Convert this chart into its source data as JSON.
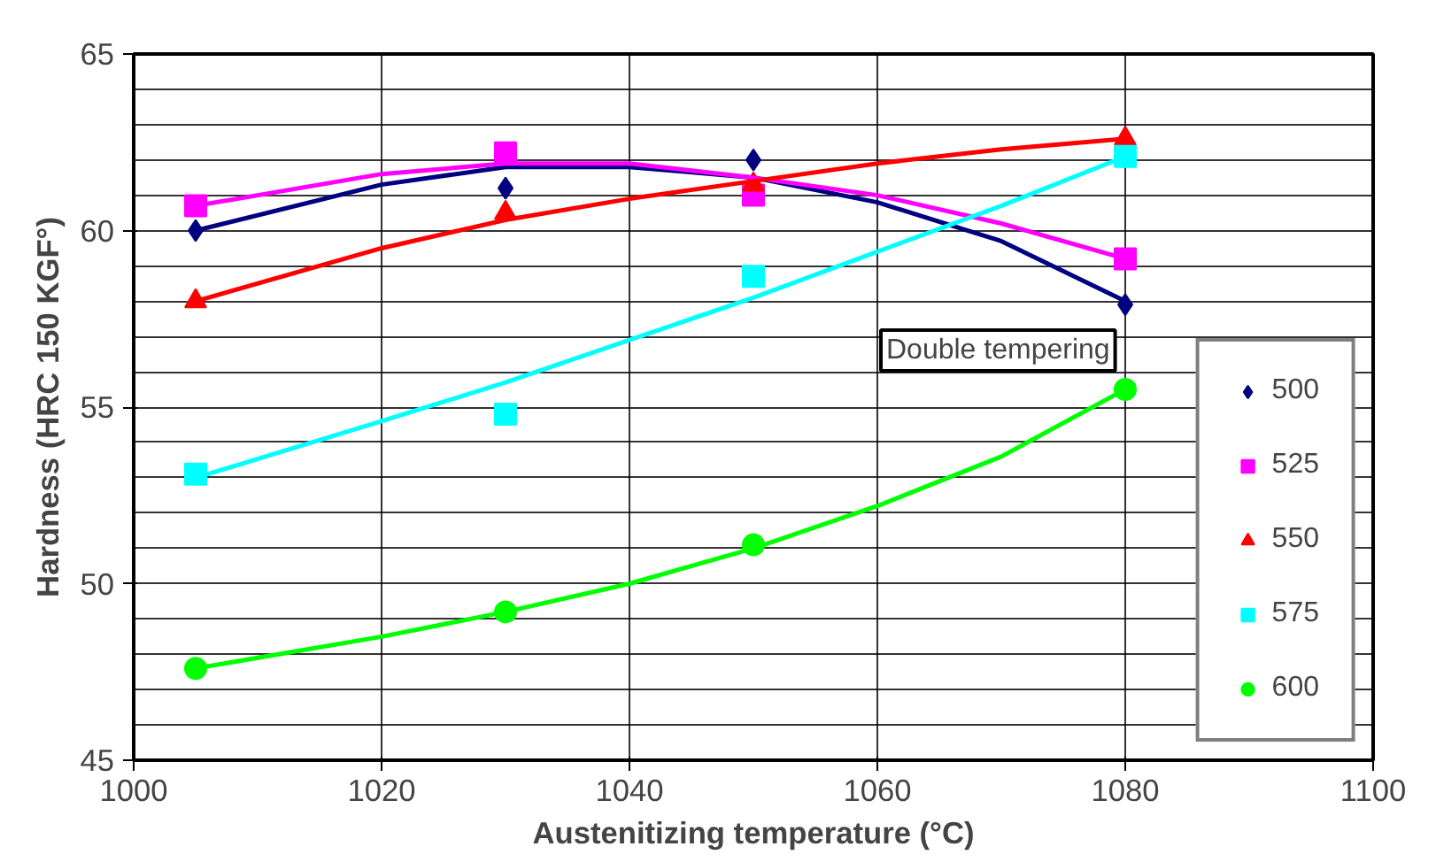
{
  "chart_data": {
    "type": "scatter",
    "xlabel": "Austenitizing temperature (°C)",
    "ylabel": "Hardness (HRC 150 KGF°)",
    "x": [
      1005,
      1030,
      1050,
      1080
    ],
    "series": [
      {
        "name": "500",
        "color": "#000080",
        "marker": "diamond",
        "values": [
          60.0,
          61.2,
          62.0,
          57.9
        ]
      },
      {
        "name": "525",
        "color": "#ff00ff",
        "marker": "square",
        "values": [
          60.7,
          62.2,
          61.0,
          59.2
        ]
      },
      {
        "name": "550",
        "color": "#ff0000",
        "marker": "triangle",
        "values": [
          58.0,
          60.5,
          61.3,
          62.6
        ]
      },
      {
        "name": "575",
        "color": "#00ffff",
        "marker": "square",
        "values": [
          53.1,
          54.8,
          58.7,
          62.1
        ]
      },
      {
        "name": "600",
        "color": "#00ff00",
        "marker": "circle",
        "values": [
          47.6,
          49.2,
          51.1,
          55.5
        ]
      },
      {
        "type": "line",
        "color": "#000080",
        "x": [
          1005,
          1020,
          1030,
          1040,
          1050,
          1060,
          1070,
          1080
        ],
        "values": [
          60.0,
          61.3,
          61.8,
          61.8,
          61.5,
          60.8,
          59.7,
          58.0
        ]
      },
      {
        "type": "line",
        "color": "#ff00ff",
        "x": [
          1005,
          1020,
          1030,
          1040,
          1050,
          1060,
          1070,
          1080
        ],
        "values": [
          60.7,
          61.6,
          61.9,
          61.9,
          61.5,
          61.0,
          60.2,
          59.2
        ]
      },
      {
        "type": "line",
        "color": "#ff0000",
        "x": [
          1005,
          1020,
          1030,
          1040,
          1050,
          1060,
          1070,
          1080
        ],
        "values": [
          58.0,
          59.5,
          60.3,
          60.9,
          61.4,
          61.9,
          62.3,
          62.6
        ]
      },
      {
        "type": "line",
        "color": "#00ffff",
        "x": [
          1005,
          1020,
          1030,
          1040,
          1050,
          1060,
          1070,
          1080
        ],
        "values": [
          53.0,
          54.6,
          55.7,
          56.9,
          58.1,
          59.4,
          60.7,
          62.1
        ]
      },
      {
        "type": "line",
        "color": "#00ff00",
        "x": [
          1005,
          1020,
          1030,
          1040,
          1050,
          1060,
          1070,
          1080
        ],
        "values": [
          47.6,
          48.5,
          49.2,
          50.0,
          51.0,
          52.2,
          53.6,
          55.5
        ]
      }
    ],
    "xlim": [
      1000,
      1100
    ],
    "xticks": [
      1000,
      1020,
      1040,
      1060,
      1080,
      1100
    ],
    "ylim": [
      45,
      65
    ],
    "yticks": [
      45,
      50,
      55,
      60,
      65
    ],
    "grid": true,
    "legend": "bottom right",
    "annotations": [
      "Double tempering"
    ]
  }
}
